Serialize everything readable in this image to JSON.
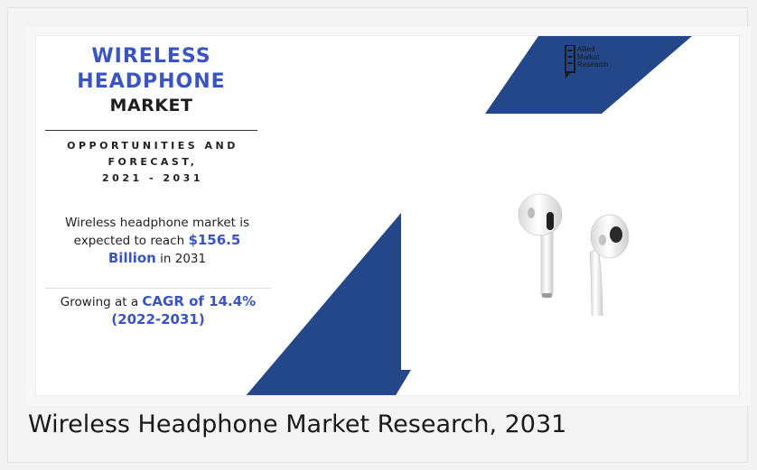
{
  "infographic": {
    "title_line1": "WIRELESS",
    "title_line2": "HEADPHONE",
    "title_line3": "MARKET",
    "forecast_line1": "OPPORTUNITIES AND",
    "forecast_line2": "FORECAST,",
    "forecast_line3": "2021 - 2031",
    "reach_prefix": "Wireless headphone market is expected to reach ",
    "reach_value": "$156.5 Billion",
    "reach_suffix": " in 2031",
    "cagr_prefix": "Growing at a ",
    "cagr_value": "CAGR of 14.4% (2022-2031)",
    "logo_line1": "Allied",
    "logo_line2": "Market",
    "logo_line3": "Research",
    "accent_color": "#3b54c4",
    "shape_color": "#24478a"
  },
  "caption": "Wireless Headphone Market Research, 2031"
}
